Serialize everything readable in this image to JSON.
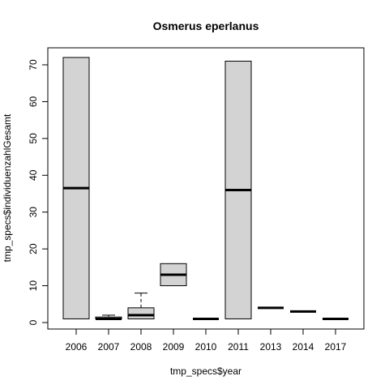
{
  "chart_data": {
    "type": "boxplot",
    "title": "Osmerus eperlanus",
    "xlabel": "tmp_specs$year",
    "ylabel": "tmp_specs$individuenzahlGesamt",
    "ylim": [
      -2,
      75
    ],
    "yticks": [
      0,
      10,
      20,
      30,
      40,
      50,
      60,
      70
    ],
    "categories": [
      "2006",
      "2007",
      "2008",
      "2009",
      "2010",
      "2011",
      "2013",
      "2014",
      "2017"
    ],
    "boxes": [
      {
        "category": "2006",
        "min": 1,
        "q1": 1,
        "median": 36.5,
        "q3": 72,
        "max": 72
      },
      {
        "category": "2007",
        "min": 1,
        "q1": 1,
        "median": 1,
        "q3": 1.5,
        "max": 2
      },
      {
        "category": "2008",
        "min": 1,
        "q1": 1,
        "median": 2,
        "q3": 4,
        "max": 8
      },
      {
        "category": "2009",
        "min": 10,
        "q1": 10,
        "median": 13,
        "q3": 16,
        "max": 16
      },
      {
        "category": "2010",
        "min": 1,
        "q1": 1,
        "median": 1,
        "q3": 1,
        "max": 1
      },
      {
        "category": "2011",
        "min": 1,
        "q1": 1,
        "median": 36,
        "q3": 71,
        "max": 71
      },
      {
        "category": "2013",
        "min": 4,
        "q1": 4,
        "median": 4,
        "q3": 4,
        "max": 4
      },
      {
        "category": "2014",
        "min": 3,
        "q1": 3,
        "median": 3,
        "q3": 3,
        "max": 3
      },
      {
        "category": "2017",
        "min": 1,
        "q1": 1,
        "median": 1,
        "q3": 1,
        "max": 1
      }
    ],
    "colors": {
      "box_fill": "#d3d3d3",
      "stroke": "#000000"
    },
    "grid": false
  }
}
